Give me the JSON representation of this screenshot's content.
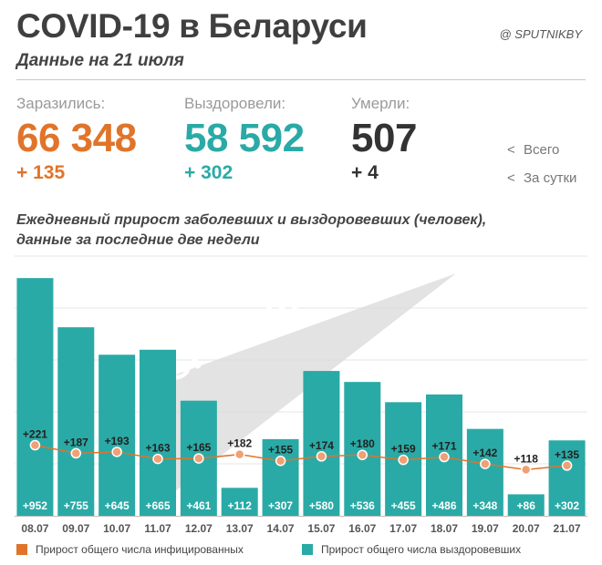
{
  "header": {
    "title": "COVID-19 в Беларуси",
    "brand": "@ SPUTNIKBY",
    "subtitle": "Данные на 21 июля"
  },
  "stats": {
    "infected": {
      "label": "Заразились:",
      "total": "66 348",
      "delta": "+ 135"
    },
    "recovered": {
      "label": "Выздоровели:",
      "total": "58 592",
      "delta": "+ 302"
    },
    "deaths": {
      "label": "Умерли:",
      "total": "507",
      "delta": "+ 4"
    }
  },
  "stat_legend": {
    "total_label": "Всего",
    "daily_label": "За сутки",
    "arrow": "<"
  },
  "watermark": "SPUTNIK",
  "colors": {
    "infected": "#e0742a",
    "recovered": "#2aaaa6",
    "point_fill": "#f0a074"
  },
  "chart_data": {
    "type": "bar",
    "title": "Ежедневный прирост заболевших и выздоровевших (человек),\nданные за последние две недели",
    "categories": [
      "08.07",
      "09.07",
      "10.07",
      "11.07",
      "12.07",
      "13.07",
      "14.07",
      "15.07",
      "16.07",
      "17.07",
      "18.07",
      "19.07",
      "20.07",
      "21.07"
    ],
    "series": [
      {
        "name": "Прирост общего числа выздоровевших",
        "kind": "bar",
        "values": [
          952,
          755,
          645,
          665,
          461,
          112,
          307,
          580,
          536,
          455,
          486,
          348,
          86,
          302
        ],
        "labels": [
          "+952",
          "+755",
          "+645",
          "+665",
          "+461",
          "+112",
          "+307",
          "+580",
          "+536",
          "+455",
          "+486",
          "+348",
          "+86",
          "+302"
        ]
      },
      {
        "name": "Прирост общего числа инфицированных",
        "kind": "line",
        "values": [
          221,
          187,
          193,
          163,
          165,
          182,
          155,
          174,
          180,
          159,
          171,
          142,
          118,
          135
        ],
        "labels": [
          "+221",
          "+187",
          "+193",
          "+163",
          "+165",
          "+182",
          "+155",
          "+174",
          "+180",
          "+159",
          "+171",
          "+142",
          "+118",
          "+135"
        ]
      }
    ],
    "ylim": [
      0,
      1000
    ],
    "grid": true,
    "legend": "bottom"
  }
}
